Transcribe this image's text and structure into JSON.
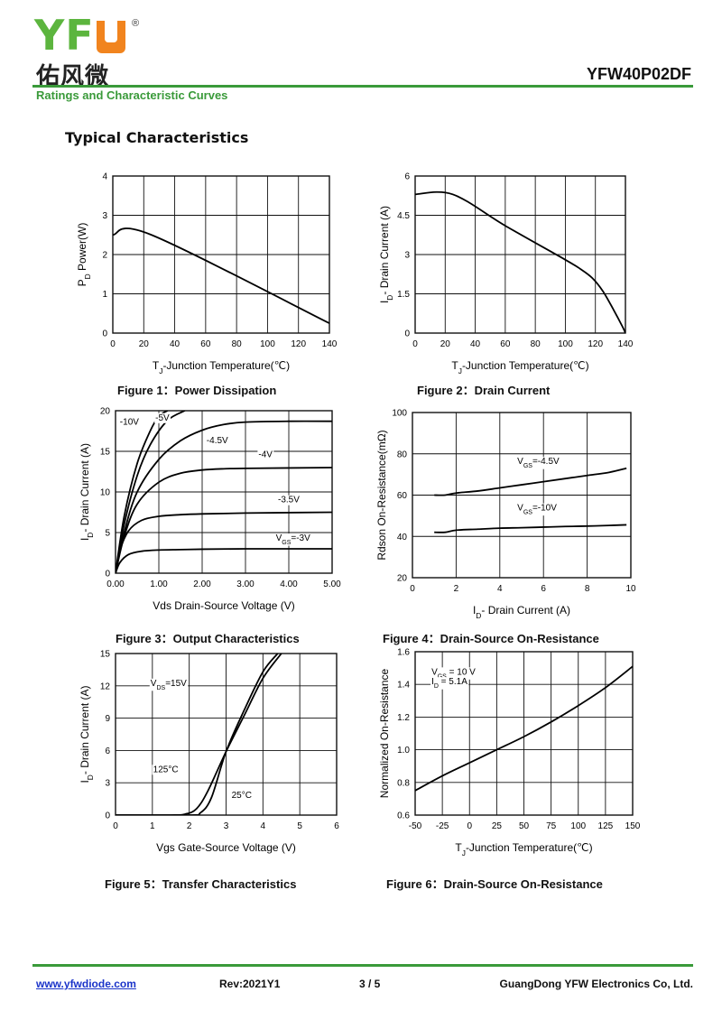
{
  "header": {
    "logo_text": "YF",
    "logo_cn": "佑风微",
    "logo_reg": "®",
    "part_number": "YFW40P02DF",
    "section_title": "Ratings and Characteristic Curves",
    "subtitle": "Typical Characteristics"
  },
  "colors": {
    "brand_green": "#5cb53e",
    "brand_orange": "#f1841e",
    "rule_green": "#3a9a3a"
  },
  "captions": {
    "fig1": "Figure 1：Power Dissipation",
    "fig2": "Figure 2：Drain Current",
    "fig3": "Figure 3：Output Characteristics",
    "fig4": "Figure 4：Drain-Source On-Resistance",
    "fig5": "Figure 5：Transfer Characteristics",
    "fig6": "Figure 6：Drain-Source On-Resistance"
  },
  "footer": {
    "url": "www.yfwdiode.com",
    "rev": "Rev:2021Y1",
    "page": "3 / 5",
    "company": "GuangDong YFW Electronics Co, Ltd."
  },
  "chart_data": [
    {
      "id": "fig1",
      "type": "line",
      "xlabel": "TJ-Junction Temperature(℃)",
      "ylabel": "PD  Power(W)",
      "xlim": [
        0,
        140
      ],
      "ylim": [
        0,
        4
      ],
      "xticks": [
        0,
        20,
        40,
        60,
        80,
        100,
        120,
        140
      ],
      "yticks": [
        0,
        1,
        2,
        3,
        4
      ],
      "ytick_labels": [
        "0",
        "1",
        "2",
        "3",
        "4"
      ],
      "grid": true,
      "series": [
        {
          "x": [
            0,
            25,
            140
          ],
          "y": [
            2.5,
            2.5,
            0.25
          ]
        }
      ],
      "annotations": []
    },
    {
      "id": "fig2",
      "type": "line",
      "xlabel": "TJ-Junction Temperature(℃)",
      "ylabel": "ID- Drain Current (A)",
      "xlim": [
        0,
        140
      ],
      "ylim": [
        0,
        6
      ],
      "xticks": [
        0,
        20,
        40,
        60,
        80,
        100,
        120,
        140
      ],
      "yticks": [
        0,
        1.5,
        3,
        4.5,
        6
      ],
      "ytick_labels": [
        "0",
        "1.5",
        "3",
        "4.5",
        "6"
      ],
      "grid": true,
      "series": [
        {
          "x": [
            0,
            25,
            60,
            100,
            110,
            118,
            125,
            132,
            138,
            140
          ],
          "y": [
            5.3,
            5.3,
            4.1,
            2.8,
            2.45,
            2.1,
            1.6,
            0.9,
            0.25,
            0
          ]
        }
      ],
      "annotations": []
    },
    {
      "id": "fig3",
      "type": "line",
      "xlabel": "Vds Drain-Source Voltage (V)",
      "ylabel": "ID- Drain Current (A)",
      "xlim": [
        0,
        5
      ],
      "ylim": [
        0,
        20
      ],
      "xticks": [
        0,
        1,
        2,
        3,
        4,
        5
      ],
      "xtick_labels": [
        "0.00",
        "1.00",
        "2.00",
        "3.00",
        "4.00",
        "5.00"
      ],
      "yticks": [
        0,
        5,
        10,
        15,
        20
      ],
      "ytick_labels": [
        "0",
        "5",
        "10",
        "15",
        "20"
      ],
      "grid": true,
      "series": [
        {
          "x": [
            0,
            0.1,
            0.3,
            0.6,
            1.0,
            1.5,
            2.0,
            3.0,
            5.0
          ],
          "y": [
            0,
            1.3,
            2.3,
            2.7,
            2.85,
            2.9,
            2.95,
            3.0,
            3.0
          ]
        },
        {
          "x": [
            0,
            0.1,
            0.3,
            0.6,
            1.0,
            1.5,
            2.0,
            3.0,
            5.0
          ],
          "y": [
            0,
            2.8,
            5.2,
            6.5,
            7.0,
            7.2,
            7.3,
            7.4,
            7.5
          ]
        },
        {
          "x": [
            0,
            0.2,
            0.5,
            1.0,
            1.5,
            2.0,
            2.5,
            3.0,
            5.0
          ],
          "y": [
            0,
            4.5,
            8.5,
            11.2,
            12.3,
            12.7,
            12.85,
            12.9,
            13.0
          ]
        },
        {
          "x": [
            0,
            0.2,
            0.5,
            1.0,
            1.5,
            2.0,
            2.5,
            3.0,
            4.0,
            5.0
          ],
          "y": [
            0,
            5.0,
            10.0,
            14.0,
            16.3,
            17.6,
            18.3,
            18.6,
            18.7,
            18.7
          ]
        },
        {
          "x": [
            0,
            0.2,
            0.5,
            0.8,
            1.2,
            1.6
          ],
          "y": [
            0,
            6.0,
            12.0,
            15.8,
            18.8,
            20.0
          ]
        },
        {
          "x": [
            0,
            0.2,
            0.5,
            0.8,
            1.0,
            1.2
          ],
          "y": [
            0,
            7.0,
            13.5,
            17.5,
            19.3,
            20.0
          ]
        }
      ],
      "annotations": [
        {
          "text": "VGS=-3V",
          "x": 3.7,
          "y": 4.0
        },
        {
          "text": "-3.5V",
          "x": 3.75,
          "y": 8.7
        },
        {
          "text": "-4V",
          "x": 3.3,
          "y": 14.3
        },
        {
          "text": "-4.5V",
          "x": 2.1,
          "y": 16.0
        },
        {
          "text": "-5V",
          "x": 0.92,
          "y": 18.8
        },
        {
          "text": "-10V",
          "x": 0.1,
          "y": 18.3
        }
      ]
    },
    {
      "id": "fig4",
      "type": "line",
      "xlabel": "ID- Drain Current (A)",
      "ylabel": "Rdson On-Resistance(mΩ)",
      "xlim": [
        0,
        10
      ],
      "ylim": [
        20,
        100
      ],
      "xticks": [
        0,
        2,
        4,
        6,
        8,
        10
      ],
      "yticks": [
        20,
        40,
        60,
        80,
        100
      ],
      "ytick_labels": [
        "20",
        "40",
        "60",
        "80",
        "100"
      ],
      "grid": true,
      "series": [
        {
          "x": [
            1,
            1.5,
            2,
            3,
            4,
            5,
            6,
            7,
            8,
            9,
            9.8
          ],
          "y": [
            60,
            60,
            61,
            62,
            63.5,
            65,
            66.5,
            68,
            69.5,
            71,
            73
          ]
        },
        {
          "x": [
            1,
            1.5,
            2,
            3,
            4,
            5,
            6,
            7,
            8,
            9,
            9.8
          ],
          "y": [
            42,
            42,
            43,
            43.5,
            44,
            44.2,
            44.5,
            44.8,
            45,
            45.3,
            45.6
          ]
        }
      ],
      "annotations": [
        {
          "text": "VGS=-4.5V",
          "x": 4.8,
          "y": 75
        },
        {
          "text": "VGS=-10V",
          "x": 4.8,
          "y": 52.5
        }
      ]
    },
    {
      "id": "fig5",
      "type": "line",
      "xlabel": "Vgs Gate-Source Voltage (V)",
      "ylabel": "ID- Drain Current (A)",
      "xlim": [
        0,
        6
      ],
      "ylim": [
        0,
        15
      ],
      "xticks": [
        0,
        1,
        2,
        3,
        4,
        5,
        6
      ],
      "yticks": [
        0,
        3,
        6,
        9,
        12,
        15
      ],
      "ytick_labels": [
        "0",
        "3",
        "6",
        "9",
        "12",
        "15"
      ],
      "grid": true,
      "series": [
        {
          "x": [
            0,
            1.5,
            1.9,
            2.2,
            2.5,
            3.0,
            3.5,
            4.0,
            4.5
          ],
          "y": [
            0,
            0,
            0.1,
            0.6,
            2.2,
            5.9,
            9.3,
            12.7,
            15.0
          ]
        },
        {
          "x": [
            0,
            2.0,
            2.3,
            2.6,
            3.0,
            3.5,
            4.0,
            4.4
          ],
          "y": [
            0,
            0,
            0.2,
            1.6,
            5.9,
            9.8,
            13.3,
            15.0
          ]
        }
      ],
      "annotations": [
        {
          "text": "VDS=15V",
          "x": 0.95,
          "y": 12.0
        },
        {
          "text": "125°C",
          "x": 1.02,
          "y": 4.0
        },
        {
          "text": "25°C",
          "x": 3.15,
          "y": 1.6
        }
      ]
    },
    {
      "id": "fig6",
      "type": "line",
      "xlabel": "TJ-Junction Temperature(℃)",
      "ylabel": "Normalized On-Resistance",
      "xlim": [
        -50,
        150
      ],
      "ylim": [
        0.6,
        1.6
      ],
      "xticks": [
        -50,
        -25,
        0,
        25,
        50,
        75,
        100,
        125,
        150
      ],
      "yticks": [
        0.6,
        0.8,
        1.0,
        1.2,
        1.4,
        1.6
      ],
      "ytick_labels": [
        "0.6",
        "0.8",
        "1.0",
        "1.2",
        "1.4",
        "1.6"
      ],
      "grid": true,
      "series": [
        {
          "x": [
            -50,
            -25,
            0,
            25,
            50,
            75,
            100,
            125,
            150
          ],
          "y": [
            0.75,
            0.84,
            0.92,
            1.0,
            1.08,
            1.17,
            1.27,
            1.38,
            1.51
          ]
        }
      ],
      "annotations": [
        {
          "text": "VGS = 10 V",
          "x": -35,
          "y": 1.46
        },
        {
          "text": "ID = 5.1A",
          "x": -35,
          "y": 1.4
        }
      ]
    }
  ]
}
